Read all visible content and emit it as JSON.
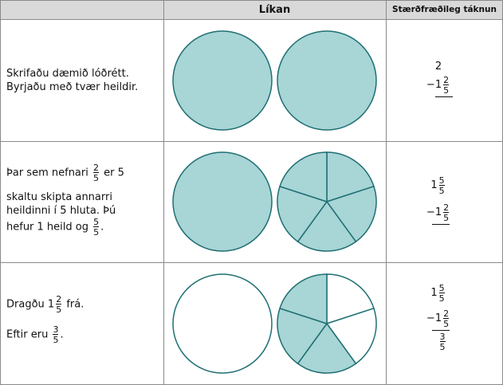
{
  "headers": {
    "col1": "",
    "col2": "Líkan",
    "col3": "Stærðfræðileg táknun"
  },
  "colors": {
    "fill": "#a8d5d6",
    "stroke": "#1f6f73",
    "header_bg": "#d9d9d9",
    "grid": "#8a8a8a"
  },
  "rows": [
    {
      "line1": "Skrifaðu dæmið lóðrétt.",
      "line2": "Byrjaðu með tvær heildir.",
      "math": {
        "top": "2",
        "sub_minus": "−",
        "sub_whole": "1",
        "sub_num": "2",
        "sub_den": "5"
      },
      "circles": [
        {
          "shaded_parts": 1,
          "total_parts": 1
        },
        {
          "shaded_parts": 1,
          "total_parts": 1
        }
      ]
    },
    {
      "p1_a": "Þar sem nefnari",
      "p1_num": "2",
      "p1_den": "5",
      "p1_b": "er 5",
      "p2_l1": "skaltu skipta annarri",
      "p2_l2": "heildinni í 5 hluta. Þú",
      "p2_l3a": "hefur 1 heild og",
      "p2_num": "5",
      "p2_den": "5",
      "p2_end": ".",
      "math": {
        "top_whole": "1",
        "top_num": "5",
        "top_den": "5",
        "sub_minus": "−",
        "sub_whole": "1",
        "sub_num": "2",
        "sub_den": "5"
      },
      "circles": [
        {
          "shaded_parts": 1,
          "total_parts": 1
        },
        {
          "shaded_parts": 5,
          "total_parts": 5
        }
      ]
    },
    {
      "a": "Dragðu",
      "a_whole": "1",
      "a_num": "2",
      "a_den": "5",
      "a_end": "frá.",
      "b": "Eftir eru",
      "b_num": "3",
      "b_den": "5",
      "b_end": ".",
      "math": {
        "top_whole": "1",
        "top_num": "5",
        "top_den": "5",
        "sub_minus": "−",
        "sub_whole": "1",
        "sub_num": "2",
        "sub_den": "5",
        "res_num": "3",
        "res_den": "5"
      },
      "circles": [
        {
          "shaded_parts": 0,
          "total_parts": 1
        },
        {
          "shaded_parts": 3,
          "total_parts": 5
        }
      ]
    }
  ]
}
